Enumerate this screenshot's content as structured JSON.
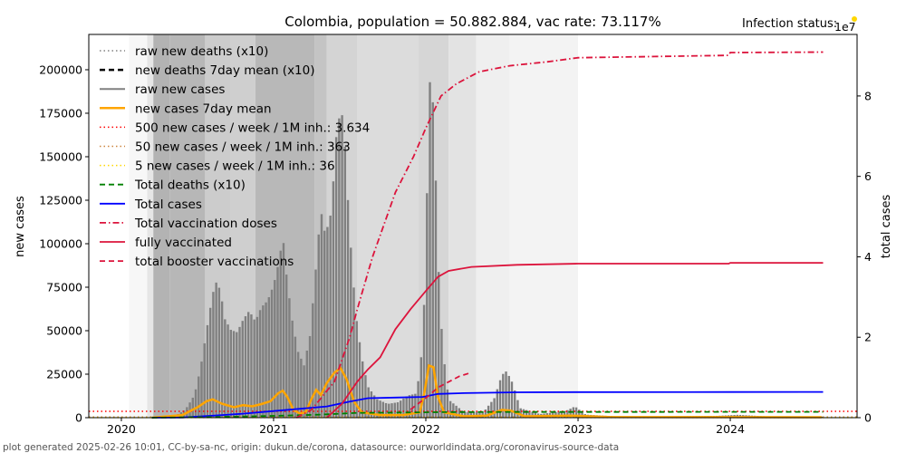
{
  "chart_data": {
    "type": "bar",
    "title": "Colombia, population = 50.882.884, vac rate: 73.117%",
    "infection_status_label": "Infection status:",
    "infection_status_color": "#ffd700",
    "footer": "plot generated 2025-02-26 10:01, CC-by-sa-nc, origin: dukun.de/corona, datasource: ourworldindata.org/coronavirus-source-data",
    "xlabel": "",
    "ylabel": "new cases",
    "y2label": "total cases",
    "y2_offset_label": "1e7",
    "xlim": [
      2019.786,
      2024.833
    ],
    "ylim": [
      0,
      220300
    ],
    "y2lim": [
      0,
      95300000
    ],
    "grid": false,
    "legend_placement": "top-left",
    "x_ticks": [
      {
        "value": 2020,
        "label": "2020"
      },
      {
        "value": 2021,
        "label": "2021"
      },
      {
        "value": 2022,
        "label": "2022"
      },
      {
        "value": 2023,
        "label": "2023"
      },
      {
        "value": 2024,
        "label": "2024"
      }
    ],
    "y_ticks": [
      {
        "value": 0,
        "label": "0"
      },
      {
        "value": 25000,
        "label": "25000"
      },
      {
        "value": 50000,
        "label": "50000"
      },
      {
        "value": 75000,
        "label": "75000"
      },
      {
        "value": 100000,
        "label": "100000"
      },
      {
        "value": 125000,
        "label": "125000"
      },
      {
        "value": 150000,
        "label": "150000"
      },
      {
        "value": 175000,
        "label": "175000"
      },
      {
        "value": 200000,
        "label": "200000"
      }
    ],
    "y2_ticks": [
      {
        "value": 0,
        "label": "0"
      },
      {
        "value": 20000000,
        "label": "2"
      },
      {
        "value": 40000000,
        "label": "4"
      },
      {
        "value": 60000000,
        "label": "6"
      },
      {
        "value": 80000000,
        "label": "8"
      }
    ],
    "legend": [
      {
        "label": "raw new deaths (x10)",
        "color": "#808080",
        "style": "dotted",
        "width": 1.5
      },
      {
        "label": "new deaths 7day mean (x10)",
        "color": "#000000",
        "style": "dashed",
        "width": 2.5
      },
      {
        "label": "raw new cases",
        "color": "#808080",
        "style": "solid",
        "width": 2
      },
      {
        "label": "new cases 7day mean",
        "color": "#ffa500",
        "style": "solid",
        "width": 2.5
      },
      {
        "label": "500 new cases / week / 1M inh.: 3.634",
        "color": "#ff0000",
        "style": "dotted",
        "width": 1.5
      },
      {
        "label": "50 new cases / week / 1M inh.: 363",
        "color": "#cd853f",
        "style": "dotted",
        "width": 1.5
      },
      {
        "label": "5 new cases / week / 1M inh.: 36",
        "color": "#ffd700",
        "style": "dotted",
        "width": 1.5
      },
      {
        "label": "Total deaths (x10)",
        "color": "#008000",
        "style": "dashed",
        "width": 1.8
      },
      {
        "label": "Total cases",
        "color": "#0000ff",
        "style": "solid",
        "width": 1.8
      },
      {
        "label": "Total vaccination doses",
        "color": "#dc143c",
        "style": "dashdot",
        "width": 1.8
      },
      {
        "label": "fully vaccinated",
        "color": "#dc143c",
        "style": "solid",
        "width": 1.8
      },
      {
        "label": "total booster vaccinations",
        "color": "#dc143c",
        "style": "dashed",
        "width": 1.8
      }
    ],
    "threshold_lines": [
      {
        "name": "500-per-week",
        "value": 3634,
        "color": "#ff0000"
      },
      {
        "name": "50-per-week",
        "value": 363,
        "color": "#cd853f"
      },
      {
        "name": "5-per-week",
        "value": 36,
        "color": "#ffd700"
      }
    ],
    "background_bands": [
      {
        "x0": 2020.05,
        "x1": 2020.17,
        "shade": "#f7f7f7"
      },
      {
        "x0": 2020.17,
        "x1": 2020.21,
        "shade": "#e6e6e6"
      },
      {
        "x0": 2020.21,
        "x1": 2020.32,
        "shade": "#b3b3b3"
      },
      {
        "x0": 2020.32,
        "x1": 2020.55,
        "shade": "#b7b7b7"
      },
      {
        "x0": 2020.55,
        "x1": 2020.72,
        "shade": "#cccccc"
      },
      {
        "x0": 2020.72,
        "x1": 2020.88,
        "shade": "#cfcfcf"
      },
      {
        "x0": 2020.88,
        "x1": 2021.27,
        "shade": "#b8b8b8"
      },
      {
        "x0": 2021.27,
        "x1": 2021.35,
        "shade": "#c4c4c4"
      },
      {
        "x0": 2021.35,
        "x1": 2021.55,
        "shade": "#d4d4d4"
      },
      {
        "x0": 2021.55,
        "x1": 2021.95,
        "shade": "#dcdcdc"
      },
      {
        "x0": 2021.95,
        "x1": 2022.15,
        "shade": "#d6d6d6"
      },
      {
        "x0": 2022.15,
        "x1": 2022.33,
        "shade": "#e3e3e3"
      },
      {
        "x0": 2022.33,
        "x1": 2022.55,
        "shade": "#efefef"
      },
      {
        "x0": 2022.55,
        "x1": 2023.0,
        "shade": "#f3f3f3"
      }
    ],
    "new_cases_peaks": [
      [
        2020.2,
        0
      ],
      [
        2020.35,
        1000
      ],
      [
        2020.42,
        5000
      ],
      [
        2020.48,
        14000
      ],
      [
        2020.52,
        30000
      ],
      [
        2020.56,
        52000
      ],
      [
        2020.6,
        72000
      ],
      [
        2020.625,
        78000
      ],
      [
        2020.65,
        72000
      ],
      [
        2020.68,
        55000
      ],
      [
        2020.72,
        48000
      ],
      [
        2020.76,
        46000
      ],
      [
        2020.8,
        52000
      ],
      [
        2020.84,
        56000
      ],
      [
        2020.88,
        50000
      ],
      [
        2020.92,
        57000
      ],
      [
        2020.96,
        60000
      ],
      [
        2021.0,
        68000
      ],
      [
        2021.04,
        82000
      ],
      [
        2021.06,
        95000
      ],
      [
        2021.08,
        77000
      ],
      [
        2021.12,
        52000
      ],
      [
        2021.16,
        35000
      ],
      [
        2021.2,
        28000
      ],
      [
        2021.24,
        45000
      ],
      [
        2021.28,
        85000
      ],
      [
        2021.31,
        117000
      ],
      [
        2021.34,
        104000
      ],
      [
        2021.38,
        120000
      ],
      [
        2021.41,
        165000
      ],
      [
        2021.44,
        185000
      ],
      [
        2021.46,
        180000
      ],
      [
        2021.5,
        115000
      ],
      [
        2021.54,
        65000
      ],
      [
        2021.58,
        38000
      ],
      [
        2021.62,
        20000
      ],
      [
        2021.68,
        12000
      ],
      [
        2021.75,
        9000
      ],
      [
        2021.82,
        10000
      ],
      [
        2021.88,
        14000
      ],
      [
        2021.94,
        15000
      ],
      [
        2021.98,
        45000
      ],
      [
        2022.0,
        100000
      ],
      [
        2022.02,
        190000
      ],
      [
        2022.035,
        210000
      ],
      [
        2022.06,
        155000
      ],
      [
        2022.08,
        92000
      ],
      [
        2022.11,
        40000
      ],
      [
        2022.15,
        10000
      ],
      [
        2022.25,
        3000
      ],
      [
        2022.38,
        3000
      ],
      [
        2022.45,
        10000
      ],
      [
        2022.5,
        22000
      ],
      [
        2022.53,
        24000
      ],
      [
        2022.57,
        18000
      ],
      [
        2022.62,
        5000
      ],
      [
        2022.75,
        2000
      ],
      [
        2022.92,
        4000
      ],
      [
        2022.98,
        7000
      ],
      [
        2023.05,
        2000
      ],
      [
        2023.3,
        600
      ],
      [
        2023.9,
        900
      ],
      [
        2024.05,
        1500
      ],
      [
        2024.3,
        500
      ],
      [
        2024.6,
        700
      ]
    ],
    "series": [
      {
        "name": "new cases 7day mean",
        "axis": "left",
        "points": [
          [
            2020.2,
            0
          ],
          [
            2020.4,
            1500
          ],
          [
            2020.5,
            6000
          ],
          [
            2020.56,
            9500
          ],
          [
            2020.6,
            10500
          ],
          [
            2020.66,
            8000
          ],
          [
            2020.74,
            6000
          ],
          [
            2020.8,
            7200
          ],
          [
            2020.86,
            6500
          ],
          [
            2020.92,
            7800
          ],
          [
            2020.98,
            9500
          ],
          [
            2021.03,
            14000
          ],
          [
            2021.06,
            15500
          ],
          [
            2021.09,
            12000
          ],
          [
            2021.13,
            4500
          ],
          [
            2021.17,
            2500
          ],
          [
            2021.21,
            3000
          ],
          [
            2021.25,
            11000
          ],
          [
            2021.28,
            16000
          ],
          [
            2021.31,
            13000
          ],
          [
            2021.35,
            20000
          ],
          [
            2021.4,
            26000
          ],
          [
            2021.44,
            28500
          ],
          [
            2021.48,
            22000
          ],
          [
            2021.53,
            9000
          ],
          [
            2021.58,
            3000
          ],
          [
            2021.7,
            1500
          ],
          [
            2021.85,
            1500
          ],
          [
            2021.96,
            3000
          ],
          [
            2021.99,
            14000
          ],
          [
            2022.02,
            30000
          ],
          [
            2022.05,
            29000
          ],
          [
            2022.08,
            12000
          ],
          [
            2022.12,
            3000
          ],
          [
            2022.25,
            800
          ],
          [
            2022.4,
            1200
          ],
          [
            2022.5,
            4500
          ],
          [
            2022.56,
            4000
          ],
          [
            2022.65,
            800
          ],
          [
            2022.95,
            1200
          ],
          [
            2023.2,
            400
          ],
          [
            2024.0,
            300
          ],
          [
            2024.6,
            250
          ]
        ]
      },
      {
        "name": "Total cases",
        "axis": "right",
        "points": [
          [
            2020.2,
            0
          ],
          [
            2020.4,
            50000
          ],
          [
            2020.6,
            500000
          ],
          [
            2020.8,
            1000000
          ],
          [
            2021.0,
            1650000
          ],
          [
            2021.2,
            2300000
          ],
          [
            2021.35,
            2800000
          ],
          [
            2021.5,
            4000000
          ],
          [
            2021.62,
            4850000
          ],
          [
            2021.8,
            5000000
          ],
          [
            2021.98,
            5150000
          ],
          [
            2022.08,
            5900000
          ],
          [
            2022.25,
            6100000
          ],
          [
            2022.6,
            6300000
          ],
          [
            2023.0,
            6350000
          ],
          [
            2024.0,
            6380000
          ],
          [
            2024.61,
            6400000
          ]
        ]
      },
      {
        "name": "Total deaths (x10)",
        "axis": "right",
        "points": [
          [
            2020.2,
            0
          ],
          [
            2020.6,
            150000
          ],
          [
            2021.0,
            450000
          ],
          [
            2021.3,
            750000
          ],
          [
            2021.55,
            1200000
          ],
          [
            2021.8,
            1270000
          ],
          [
            2022.1,
            1370000
          ],
          [
            2022.5,
            1420000
          ],
          [
            2023.0,
            1430000
          ],
          [
            2024.61,
            1440000
          ]
        ]
      },
      {
        "name": "Total vaccination doses",
        "axis": "right",
        "points": [
          [
            2021.15,
            0
          ],
          [
            2021.25,
            2000000
          ],
          [
            2021.4,
            9000000
          ],
          [
            2021.5,
            20000000
          ],
          [
            2021.55,
            27000000
          ],
          [
            2021.65,
            40000000
          ],
          [
            2021.8,
            56000000
          ],
          [
            2021.92,
            65000000
          ],
          [
            2022.0,
            72000000
          ],
          [
            2022.1,
            80000000
          ],
          [
            2022.2,
            83000000
          ],
          [
            2022.35,
            86000000
          ],
          [
            2022.55,
            87500000
          ],
          [
            2022.8,
            88500000
          ],
          [
            2023.0,
            89500000
          ],
          [
            2023.5,
            89800000
          ],
          [
            2023.99,
            90100000
          ],
          [
            2024.0,
            90800000
          ],
          [
            2024.61,
            90900000
          ]
        ]
      },
      {
        "name": "fully vaccinated",
        "axis": "right",
        "points": [
          [
            2021.35,
            0
          ],
          [
            2021.45,
            3500000
          ],
          [
            2021.55,
            9000000
          ],
          [
            2021.62,
            12000000
          ],
          [
            2021.7,
            15000000
          ],
          [
            2021.8,
            22000000
          ],
          [
            2021.9,
            27000000
          ],
          [
            2022.0,
            31500000
          ],
          [
            2022.08,
            35000000
          ],
          [
            2022.15,
            36500000
          ],
          [
            2022.3,
            37500000
          ],
          [
            2022.6,
            38000000
          ],
          [
            2023.0,
            38300000
          ],
          [
            2023.99,
            38300000
          ],
          [
            2024.0,
            38500000
          ],
          [
            2024.61,
            38500000
          ]
        ]
      },
      {
        "name": "total booster vaccinations",
        "axis": "right",
        "points": [
          [
            2021.9,
            2000000
          ],
          [
            2021.95,
            3500000
          ],
          [
            2022.02,
            5500000
          ],
          [
            2022.08,
            7500000
          ],
          [
            2022.22,
            10300000
          ],
          [
            2022.28,
            11000000
          ]
        ]
      }
    ]
  }
}
